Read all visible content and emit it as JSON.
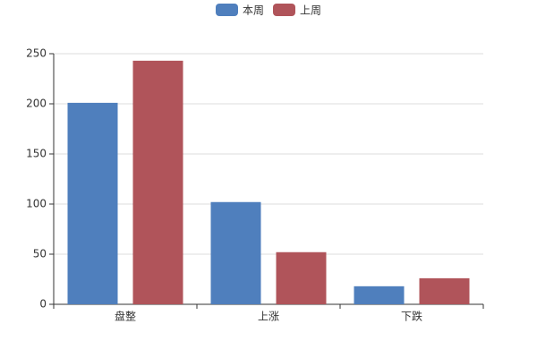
{
  "chart_data": {
    "type": "bar",
    "categories": [
      "盘整",
      "上涨",
      "下跌"
    ],
    "series": [
      {
        "name": "本周",
        "color": "#4f7fbd",
        "values": [
          201,
          102,
          18
        ]
      },
      {
        "name": "上周",
        "color": "#b0545a",
        "values": [
          243,
          52,
          26
        ]
      }
    ],
    "ylim": [
      0,
      250
    ],
    "yticks": [
      0,
      50,
      100,
      150,
      200,
      250
    ],
    "grid": true,
    "legend": "top"
  }
}
